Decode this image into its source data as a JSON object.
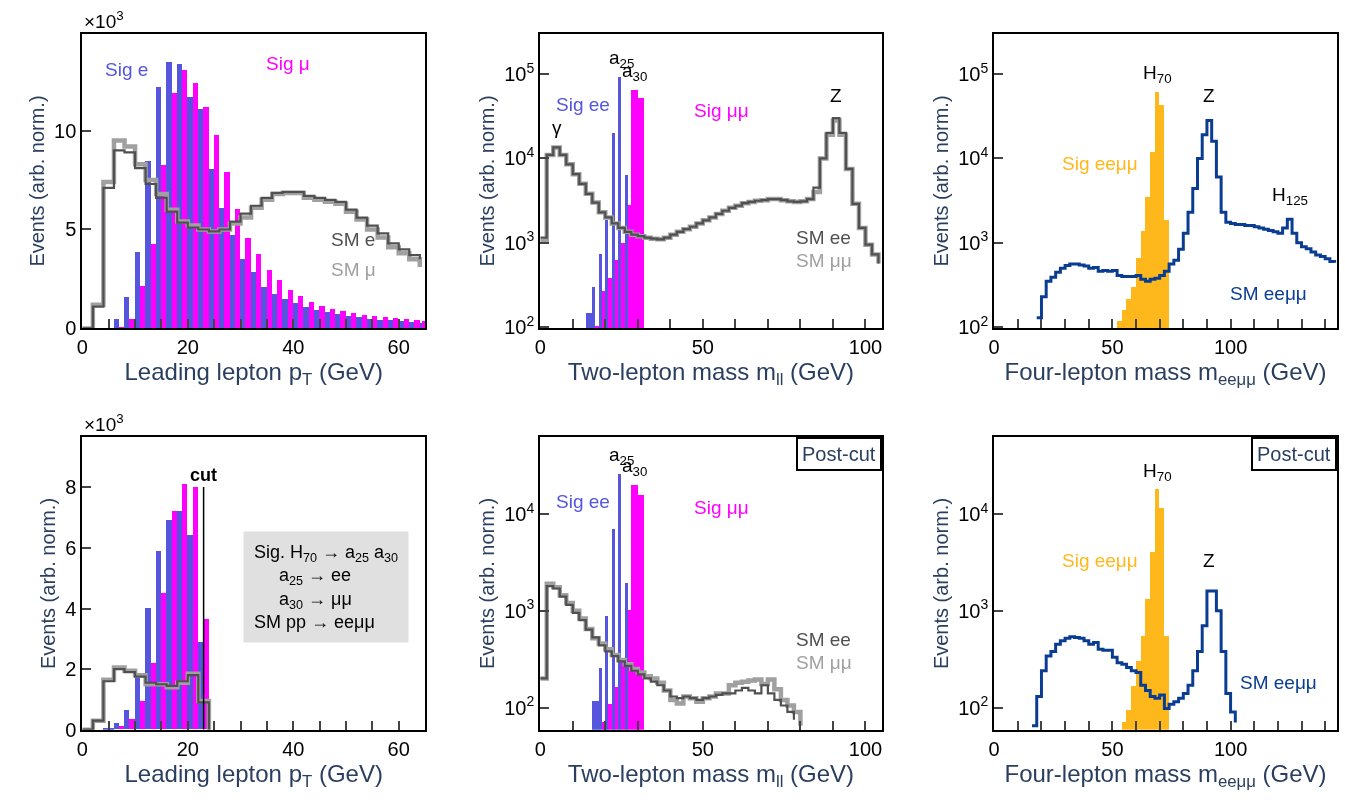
{
  "chart_data": [
    {
      "type": "histogram",
      "xlabel": "Leading lepton p$_{T}$ (GeV)",
      "ylabel": "Events (arb. norm.)",
      "xlim": [
        0,
        65
      ],
      "ylim": [
        0,
        14.9
      ],
      "xticks": [
        0,
        {
          "value": 5,
          "label": null
        },
        {
          "value": 10,
          "label": null
        },
        {
          "value": 15,
          "label": null
        },
        20,
        {
          "value": 25,
          "label": null
        },
        {
          "value": 30,
          "label": null
        },
        {
          "value": 35,
          "label": null
        },
        40,
        {
          "value": 45,
          "label": null
        },
        {
          "value": 50,
          "label": null
        },
        {
          "value": 55,
          "label": null
        },
        60
      ],
      "yticks": [
        0,
        5,
        10
      ],
      "annotations": [
        "×10$^{3}$"
      ],
      "series": [
        {
          "name": "Sig e",
          "type": "histogram",
          "color": "#5555dd",
          "bins": [
            6,
            8,
            10,
            12,
            14,
            16,
            18,
            20,
            22,
            24,
            26,
            28,
            30,
            32,
            34,
            36,
            38,
            40,
            42,
            44,
            46,
            48,
            50,
            52,
            54,
            56,
            58,
            60,
            62,
            64,
            65
          ],
          "values": [
            0.47,
            1.6,
            3.9,
            8.5,
            12.2,
            13.5,
            13.4,
            11.7,
            11.1,
            8.1,
            6.1,
            4.75,
            3.55,
            2.85,
            2.1,
            1.75,
            1.5,
            1.3,
            1.1,
            0.95,
            0.85,
            0.75,
            0.65,
            0.6,
            0.5,
            0.45,
            0.42,
            0.38,
            0.35,
            0.3
          ]
        },
        {
          "name": "Sig μ",
          "type": "histogram",
          "color": "#ff00ff",
          "bins": [
            6,
            8,
            10,
            12,
            14,
            16,
            18,
            20,
            22,
            24,
            26,
            28,
            30,
            32,
            34,
            36,
            38,
            40,
            42,
            44,
            46,
            48,
            50,
            52,
            54,
            56,
            58,
            60,
            62,
            64,
            65
          ],
          "values": [
            0.1,
            0.5,
            2.15,
            4.3,
            8.3,
            11.9,
            13.1,
            12.4,
            11.2,
            9.8,
            7.9,
            6.05,
            4.6,
            3.8,
            2.95,
            2.45,
            1.95,
            1.65,
            1.35,
            1.15,
            1.0,
            0.9,
            0.8,
            0.72,
            0.65,
            0.6,
            0.55,
            0.5,
            0.45,
            0.4
          ]
        },
        {
          "name": "SM e",
          "type": "step",
          "color": "#505050",
          "x": [
            0,
            2,
            4,
            6,
            8,
            10,
            12,
            14,
            16,
            18,
            20,
            22,
            24,
            26,
            28,
            30,
            32,
            34,
            36,
            38,
            40,
            42,
            44,
            46,
            48,
            50,
            52,
            54,
            56,
            58,
            60,
            62,
            64
          ],
          "values": [
            0,
            1.1,
            7.1,
            9.0,
            8.9,
            8.1,
            7.3,
            6.6,
            5.9,
            5.35,
            5.1,
            5.0,
            4.9,
            5.0,
            5.4,
            5.8,
            6.2,
            6.6,
            6.85,
            6.9,
            6.9,
            6.7,
            6.6,
            6.5,
            6.4,
            6.0,
            5.6,
            5.2,
            4.8,
            4.3,
            4.0,
            3.7,
            3.5
          ]
        },
        {
          "name": "SM μ",
          "type": "step",
          "color": "#a0a0a0",
          "x": [
            0,
            2,
            4,
            6,
            8,
            10,
            12,
            14,
            16,
            18,
            20,
            22,
            24,
            26,
            28,
            30,
            32,
            34,
            36,
            38,
            40,
            42,
            44,
            46,
            48,
            50,
            52,
            54,
            56,
            58,
            60,
            62,
            64
          ],
          "values": [
            0,
            1.2,
            7.4,
            9.5,
            9.2,
            8.3,
            7.5,
            6.8,
            6.0,
            5.4,
            5.2,
            5.0,
            4.9,
            5.0,
            5.3,
            5.6,
            6.1,
            6.5,
            6.8,
            6.85,
            6.85,
            6.6,
            6.5,
            6.4,
            6.3,
            5.9,
            5.5,
            5.0,
            4.6,
            4.1,
            3.8,
            3.5,
            3.1
          ]
        }
      ]
    },
    {
      "type": "histogram",
      "xlabel": "Two-lepton mass m$_{ll}$ (GeV)",
      "ylabel": "Events (arb. norm.)",
      "log": "y",
      "xlim": [
        0,
        105
      ],
      "ylim": [
        97,
        300000
      ],
      "xticks": [
        0,
        {
          "value": 10,
          "label": null
        },
        {
          "value": 20,
          "label": null
        },
        {
          "value": 30,
          "label": null
        },
        {
          "value": 40,
          "label": null
        },
        50,
        {
          "value": 60,
          "label": null
        },
        {
          "value": 70,
          "label": null
        },
        {
          "value": 80,
          "label": null
        },
        {
          "value": 90,
          "label": null
        },
        100
      ],
      "yticks": [
        {
          "value": 100,
          "label": "10$^{2}$"
        },
        {
          "value": 1000,
          "label": "10$^{3}$"
        },
        {
          "value": 10000,
          "label": "10$^{4}$"
        },
        {
          "value": 100000,
          "label": "10$^{5}$"
        }
      ],
      "annotations": [
        "γ",
        "Z",
        {
          "text": "a$_{25}$",
          "x": 25,
          "y": 92000
        },
        {
          "text": "a$_{30}$",
          "x": 29,
          "y": 65000
        }
      ],
      "series": [
        {
          "name": "Sig ee",
          "type": "histogram",
          "color": "#5555dd",
          "bins": [
            14,
            16,
            18,
            20,
            22,
            24,
            26,
            28
          ],
          "values": [
            150,
            300,
            740,
            1900,
            20000,
            92000,
            6500
          ]
        },
        {
          "name": "Sig μμ",
          "type": "histogram",
          "color": "#ff00ff",
          "bins": [
            16,
            18,
            20,
            22,
            24,
            26,
            28,
            30,
            32
          ],
          "values": [
            105,
            270,
            390,
            630,
            1000,
            2800,
            65000,
            53000
          ]
        },
        {
          "name": "SM ee",
          "type": "step",
          "color": "#505050",
          "x": [
            0,
            2,
            4,
            6,
            8,
            10,
            12,
            14,
            16,
            18,
            20,
            22,
            24,
            26,
            28,
            30,
            32,
            34,
            36,
            38,
            40,
            42,
            44,
            46,
            48,
            50,
            52,
            54,
            56,
            58,
            60,
            62,
            64,
            66,
            68,
            70,
            72,
            74,
            76,
            78,
            80,
            82,
            84,
            86,
            88,
            90,
            92,
            94,
            96,
            98,
            100,
            102,
            104
          ],
          "values": [
            1150,
            11000,
            13500,
            11000,
            8500,
            6500,
            5000,
            3800,
            3000,
            2300,
            2000,
            1700,
            1500,
            1350,
            1250,
            1200,
            1150,
            1120,
            1100,
            1150,
            1250,
            1350,
            1450,
            1550,
            1700,
            1850,
            2000,
            2200,
            2400,
            2600,
            2750,
            2950,
            3050,
            3150,
            3200,
            3300,
            3300,
            3200,
            3100,
            3050,
            3100,
            3300,
            4500,
            10000,
            20000,
            30000,
            20000,
            7500,
            2900,
            1500,
            950,
            730,
            570
          ]
        },
        {
          "name": "SM μμ",
          "type": "step",
          "color": "#a0a0a0",
          "x": [
            0,
            2,
            4,
            6,
            8,
            10,
            12,
            14,
            16,
            18,
            20,
            22,
            24,
            26,
            28,
            30,
            32,
            34,
            36,
            38,
            40,
            42,
            44,
            46,
            48,
            50,
            52,
            54,
            56,
            58,
            60,
            62,
            64,
            66,
            68,
            70,
            72,
            74,
            76,
            78,
            80,
            82,
            84,
            86,
            88,
            90,
            92,
            94,
            96,
            98,
            100,
            102,
            104
          ],
          "values": [
            1050,
            11000,
            13500,
            11000,
            8500,
            6500,
            5000,
            3800,
            3000,
            2300,
            2000,
            1700,
            1500,
            1350,
            1250,
            1200,
            1150,
            1120,
            1100,
            1150,
            1250,
            1350,
            1450,
            1550,
            1700,
            1850,
            2000,
            2200,
            2400,
            2600,
            2750,
            2950,
            3050,
            3150,
            3200,
            3300,
            3300,
            3200,
            3100,
            3050,
            3100,
            3300,
            4000,
            10000,
            19000,
            28000,
            19000,
            7500,
            2900,
            1500,
            950,
            730,
            570
          ]
        }
      ]
    },
    {
      "type": "histogram",
      "xlabel": "Four-lepton mass m$_{eeμμ}$ (GeV)",
      "ylabel": "Events (arb. norm.)",
      "log": "y",
      "xlim": [
        0,
        145
      ],
      "ylim": [
        97,
        300000
      ],
      "xticks": [
        0,
        {
          "value": 10,
          "label": null
        },
        {
          "value": 20,
          "label": null
        },
        {
          "value": 30,
          "label": null
        },
        {
          "value": 40,
          "label": null
        },
        50,
        {
          "value": 60,
          "label": null
        },
        {
          "value": 70,
          "label": null
        },
        {
          "value": 80,
          "label": null
        },
        {
          "value": 90,
          "label": null
        },
        100,
        {
          "value": 110,
          "label": null
        },
        {
          "value": 120,
          "label": null
        },
        {
          "value": 130,
          "label": null
        },
        {
          "value": 140,
          "label": null
        }
      ],
      "yticks": [
        {
          "value": 100,
          "label": "10$^{2}$"
        },
        {
          "value": 1000,
          "label": "10$^{3}$"
        },
        {
          "value": 10000,
          "label": "10$^{4}$"
        },
        {
          "value": 100000,
          "label": "10$^{5}$"
        }
      ],
      "annotations": [
        "Z",
        "H$_{125}$",
        {
          "text": "H$_{70}$",
          "x": 69,
          "y": 61000
        }
      ],
      "series": [
        {
          "name": "Sig eeμμ",
          "type": "histogram",
          "color": "#ffb81c",
          "bins": [
            52,
            54,
            56,
            58,
            60,
            62,
            64,
            66,
            68,
            70,
            72,
            74
          ],
          "values": [
            120,
            160,
            220,
            300,
            670,
            1400,
            3500,
            12000,
            61000,
            43000,
            1900
          ]
        },
        {
          "name": "SM eeμμ",
          "type": "step",
          "color": "#0a3d91",
          "x": [
            18,
            20,
            22,
            24,
            26,
            28,
            30,
            32,
            34,
            36,
            38,
            40,
            42,
            44,
            46,
            48,
            50,
            52,
            54,
            56,
            58,
            60,
            62,
            64,
            66,
            68,
            70,
            72,
            74,
            76,
            78,
            80,
            82,
            84,
            86,
            88,
            90,
            92,
            94,
            96,
            98,
            100,
            102,
            104,
            106,
            108,
            110,
            112,
            114,
            116,
            118,
            120,
            122,
            124,
            126,
            128,
            130,
            132,
            134,
            136,
            138,
            140,
            142,
            144
          ],
          "values": [
            130,
            230,
            350,
            390,
            450,
            500,
            540,
            560,
            560,
            545,
            530,
            500,
            510,
            460,
            470,
            460,
            470,
            410,
            400,
            400,
            400,
            410,
            370,
            350,
            370,
            380,
            410,
            460,
            560,
            620,
            840,
            1300,
            2300,
            4400,
            10000,
            19000,
            28000,
            16000,
            6000,
            2300,
            1750,
            1700,
            1650,
            1650,
            1600,
            1600,
            1550,
            1500,
            1450,
            1400,
            1350,
            1300,
            1500,
            1900,
            1300,
            1000,
            900,
            850,
            780,
            720,
            690,
            650,
            600,
            580
          ]
        }
      ]
    },
    {
      "type": "histogram",
      "xlabel": "Leading lepton p$_{T}$ (GeV)",
      "ylabel": "Events (arb. norm.)",
      "xlim": [
        0,
        65
      ],
      "ylim": [
        0,
        9.65
      ],
      "xticks": [
        0,
        {
          "value": 5,
          "label": null
        },
        {
          "value": 10,
          "label": null
        },
        {
          "value": 15,
          "label": null
        },
        20,
        {
          "value": 25,
          "label": null
        },
        {
          "value": 30,
          "label": null
        },
        {
          "value": 35,
          "label": null
        },
        40,
        {
          "value": 45,
          "label": null
        },
        {
          "value": 50,
          "label": null
        },
        {
          "value": 55,
          "label": null
        },
        60
      ],
      "yticks": [
        0,
        2,
        4,
        6,
        8
      ],
      "annotations": [
        "×10$^{3}$",
        "Sig. H$_{70}$ → a$_{25}$ a$_{30}$\n     a$_{25}$ → ee\n     a$_{30}$ → μμ\nSM pp → eeμμ"
      ],
      "ref_lines": [
        {
          "axis": "x",
          "value": 23,
          "label": "cut",
          "color": "#000000"
        }
      ],
      "series": [
        {
          "name": null,
          "type": "histogram",
          "color": "#5555dd",
          "bins": [
            4,
            6,
            8,
            10,
            12,
            14,
            16,
            18,
            20,
            22,
            24
          ],
          "values": [
            0.05,
            0.2,
            0.65,
            1.7,
            4.0,
            5.9,
            6.9,
            7.2,
            6.4,
            2.9
          ]
        },
        {
          "name": null,
          "type": "histogram",
          "color": "#ff00ff",
          "bins": [
            6,
            8,
            10,
            12,
            14,
            16,
            18,
            20,
            22,
            24
          ],
          "values": [
            0.1,
            0.35,
            0.95,
            2.2,
            4.5,
            7.2,
            8.1,
            8.0,
            3.65
          ]
        },
        {
          "name": null,
          "type": "step",
          "color": "#505050",
          "x": [
            0,
            2,
            4,
            6,
            8,
            10,
            12,
            14,
            16,
            18,
            20,
            22,
            24
          ],
          "values": [
            0,
            0.3,
            1.6,
            2.0,
            1.9,
            1.75,
            1.55,
            1.5,
            1.45,
            1.6,
            1.8,
            0.9,
            0
          ]
        },
        {
          "name": null,
          "type": "step",
          "color": "#a0a0a0",
          "x": [
            0,
            2,
            4,
            6,
            8,
            10,
            12,
            14,
            16,
            18,
            20,
            22,
            24
          ],
          "values": [
            0,
            0.3,
            1.65,
            2.05,
            1.95,
            1.8,
            1.5,
            1.5,
            1.4,
            1.55,
            1.85,
            0.95,
            0
          ]
        }
      ]
    },
    {
      "type": "histogram",
      "xlabel": "Two-lepton mass m$_{ll}$ (GeV)",
      "ylabel": "Events (arb. norm.)",
      "log": "y",
      "xlim": [
        0,
        105
      ],
      "ylim": [
        59,
        62000
      ],
      "xticks": [
        0,
        {
          "value": 10,
          "label": null
        },
        {
          "value": 20,
          "label": null
        },
        {
          "value": 30,
          "label": null
        },
        {
          "value": 40,
          "label": null
        },
        50,
        {
          "value": 60,
          "label": null
        },
        {
          "value": 70,
          "label": null
        },
        {
          "value": 80,
          "label": null
        },
        {
          "value": 90,
          "label": null
        },
        100
      ],
      "yticks": [
        {
          "value": 100,
          "label": "10$^{2}$"
        },
        {
          "value": 1000,
          "label": "10$^{3}$"
        },
        {
          "value": 10000,
          "label": "10$^{4}$"
        }
      ],
      "annotations": [
        "Post-cut",
        {
          "text": "a$_{25}$",
          "x": 25,
          "y": 26000
        },
        {
          "text": "a$_{30}$",
          "x": 29,
          "y": 20000
        }
      ],
      "series": [
        {
          "name": "Sig ee",
          "type": "histogram",
          "color": "#5555dd",
          "bins": [
            16,
            18,
            20,
            22,
            24,
            26,
            28
          ],
          "values": [
            117,
            255,
            880,
            6900,
            26000,
            1940
          ]
        },
        {
          "name": "Sig μμ",
          "type": "histogram",
          "color": "#ff00ff",
          "bins": [
            18,
            20,
            22,
            24,
            26,
            28,
            30,
            32
          ],
          "values": [
            70,
            108,
            160,
            300,
            1000,
            20000,
            15500
          ]
        },
        {
          "name": "SM ee",
          "type": "step",
          "color": "#505050",
          "x": [
            0,
            2,
            4,
            6,
            8,
            10,
            12,
            14,
            16,
            18,
            20,
            22,
            24,
            26,
            28,
            30,
            32,
            34,
            36,
            38,
            40,
            42,
            44,
            46,
            48,
            50,
            52,
            54,
            56,
            58,
            60,
            62,
            64,
            66,
            68,
            70,
            72,
            74,
            76,
            78
          ],
          "values": [
            200,
            1800,
            1700,
            1400,
            1150,
            950,
            800,
            640,
            530,
            440,
            380,
            340,
            300,
            270,
            240,
            220,
            200,
            185,
            170,
            150,
            130,
            125,
            130,
            125,
            120,
            125,
            130,
            135,
            140,
            140,
            150,
            160,
            150,
            140,
            170,
            140,
            120,
            105,
            90,
            75
          ]
        },
        {
          "name": "SM μμ",
          "type": "step",
          "color": "#a0a0a0",
          "x": [
            0,
            2,
            4,
            6,
            8,
            10,
            12,
            14,
            16,
            18,
            20,
            22,
            24,
            26,
            28,
            30,
            32,
            34,
            36,
            38,
            40,
            42,
            44,
            46,
            48,
            50,
            52,
            54,
            56,
            58,
            60,
            62,
            64,
            66,
            68,
            70,
            72,
            74,
            76,
            78,
            80
          ],
          "values": [
            200,
            1900,
            1750,
            1450,
            1200,
            1000,
            830,
            650,
            520,
            460,
            400,
            350,
            310,
            280,
            250,
            230,
            210,
            200,
            180,
            150,
            120,
            110,
            130,
            125,
            115,
            125,
            130,
            140,
            140,
            170,
            180,
            185,
            190,
            195,
            175,
            195,
            155,
            120,
            105,
            90,
            65
          ]
        }
      ]
    },
    {
      "type": "histogram",
      "xlabel": "Four-lepton mass m$_{eeμμ}$ (GeV)",
      "ylabel": "Events (arb. norm.)",
      "log": "y",
      "xlim": [
        0,
        145
      ],
      "ylim": [
        59,
        62000
      ],
      "xticks": [
        0,
        {
          "value": 10,
          "label": null
        },
        {
          "value": 20,
          "label": null
        },
        {
          "value": 30,
          "label": null
        },
        {
          "value": 40,
          "label": null
        },
        50,
        {
          "value": 60,
          "label": null
        },
        {
          "value": 70,
          "label": null
        },
        {
          "value": 80,
          "label": null
        },
        {
          "value": 90,
          "label": null
        },
        100,
        {
          "value": 110,
          "label": null
        },
        {
          "value": 120,
          "label": null
        },
        {
          "value": 130,
          "label": null
        },
        {
          "value": 140,
          "label": null
        }
      ],
      "yticks": [
        {
          "value": 100,
          "label": "10$^{2}$"
        },
        {
          "value": 1000,
          "label": "10$^{3}$"
        },
        {
          "value": 10000,
          "label": "10$^{4}$"
        }
      ],
      "annotations": [
        "Post-cut",
        "Z",
        {
          "text": "H$_{70}$",
          "x": 69,
          "y": 17800
        }
      ],
      "series": [
        {
          "name": "Sig eeμμ",
          "type": "histogram",
          "color": "#ffb81c",
          "bins": [
            54,
            56,
            58,
            60,
            62,
            64,
            66,
            68,
            70,
            72,
            74
          ],
          "values": [
            70,
            94,
            165,
            300,
            550,
            1300,
            4000,
            17800,
            11400,
            550
          ]
        },
        {
          "name": "SM eeμμ",
          "type": "step",
          "color": "#0a3d91",
          "x": [
            16,
            18,
            20,
            22,
            24,
            26,
            28,
            30,
            32,
            34,
            36,
            38,
            40,
            42,
            44,
            46,
            48,
            50,
            52,
            54,
            56,
            58,
            60,
            62,
            64,
            66,
            68,
            70,
            72,
            74,
            76,
            78,
            80,
            82,
            84,
            86,
            88,
            90,
            92,
            94,
            96,
            98,
            100,
            102
          ],
          "values": [
            65,
            130,
            240,
            340,
            380,
            450,
            490,
            520,
            540,
            530,
            520,
            490,
            450,
            470,
            400,
            390,
            390,
            330,
            290,
            280,
            260,
            240,
            230,
            170,
            150,
            130,
            125,
            135,
            98,
            108,
            115,
            125,
            140,
            170,
            240,
            380,
            700,
            1600,
            1600,
            1000,
            380,
            140,
            90,
            70
          ]
        }
      ]
    }
  ]
}
